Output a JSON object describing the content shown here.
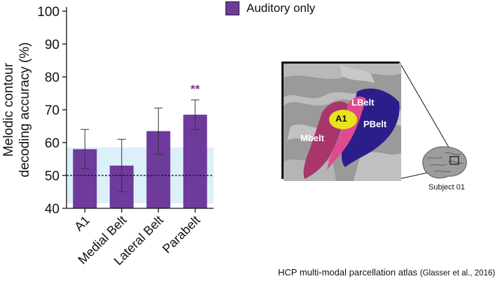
{
  "chart_data": {
    "type": "bar",
    "categories": [
      "A1",
      "Medial Belt",
      "Lateral Belt",
      "Parabelt"
    ],
    "series": [
      {
        "name": "Auditory only",
        "values": [
          58,
          53,
          63.5,
          68.5
        ],
        "error_low": [
          52,
          45,
          56.5,
          64
        ],
        "error_high": [
          64,
          61,
          70.5,
          73
        ]
      }
    ],
    "ylabel": "Melodic contour decoding accuracy (%)",
    "ylabel_lines": [
      "Melodic contour",
      "decoding accuracy (%)"
    ],
    "ylim": [
      40,
      100
    ],
    "yticks": [
      40,
      50,
      60,
      70,
      80,
      90,
      100
    ],
    "chance_level": 50,
    "null_band": [
      41.5,
      58.5
    ],
    "annotations": [
      {
        "category": "Parabelt",
        "text": "**"
      }
    ],
    "legend_position": "top-right"
  },
  "colors": {
    "bar": "#6e3b9c",
    "null_band": "#dcf0fa",
    "annotation": "#6e3b9c"
  },
  "legend": {
    "label": "Auditory only"
  },
  "brain_panel": {
    "regions": [
      "A1",
      "LBelt",
      "PBelt",
      "Mbelt"
    ]
  },
  "subject_label": "Subject 01",
  "credit": {
    "main": "HCP multi-modal parcellation atlas",
    "citation": "(Glasser et al., 2016)"
  }
}
